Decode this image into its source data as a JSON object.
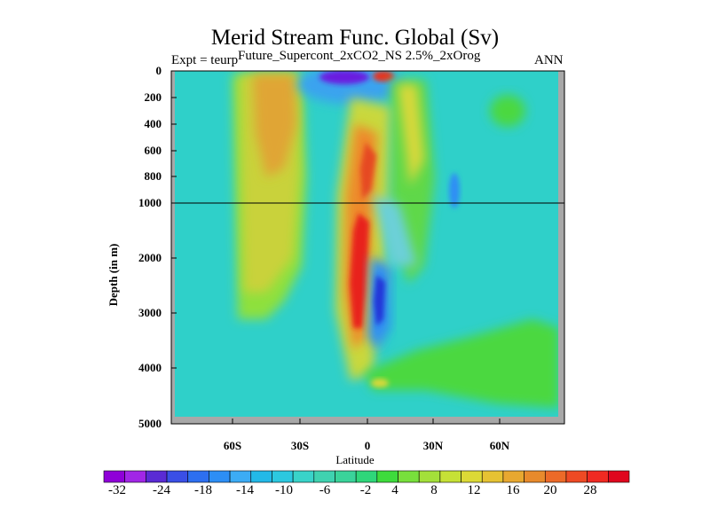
{
  "chart_data": {
    "type": "heatmap",
    "title": "Merid Stream Func. Global (Sv)",
    "subtitle_left": "Expt = teurp",
    "subtitle_center": "Future_Supercont_2xCO2_NS 2.5%_2xOrog",
    "subtitle_right": "ANN",
    "xlabel": "Latitude",
    "ylabel": "Depth (in m)",
    "y_ticks": [
      "0",
      "200",
      "400",
      "600",
      "800",
      "1000",
      "2000",
      "3000",
      "4000",
      "5000"
    ],
    "x_ticks": [
      "60S",
      "30S",
      "0",
      "30N",
      "60N"
    ],
    "colorbar_ticks": [
      "-32",
      "-24",
      "-18",
      "-14",
      "-10",
      "-6",
      "-2",
      "4",
      "8",
      "12",
      "16",
      "20",
      "28"
    ],
    "colorbar_colors": [
      "#8f00d8",
      "#a126e6",
      "#5a2bd4",
      "#3a4fe6",
      "#2d6ff0",
      "#2d8ef5",
      "#3cacf5",
      "#22b9e8",
      "#2cc8e0",
      "#39d3c9",
      "#3fd2b0",
      "#3ad39a",
      "#2fd67a",
      "#3edb3c",
      "#78e03c",
      "#a3e03a",
      "#c6e136",
      "#dcd936",
      "#e6c233",
      "#e8a830",
      "#e88a2c",
      "#ec6a28",
      "#ee4a24",
      "#f02a22",
      "#e0061e"
    ],
    "x_range": [
      -90,
      90
    ],
    "y_range": [
      0,
      5000
    ],
    "horizontal_line_depth": 1000,
    "fields": [
      {
        "name": "southern-cell",
        "color": "#d9c13c",
        "lat_range": [
          -60,
          -30
        ],
        "depth_range": [
          0,
          3100
        ]
      },
      {
        "name": "equatorial-positive-cell",
        "color": "#e8301f",
        "lat_range": [
          -10,
          5
        ],
        "depth_range": [
          500,
          4000
        ]
      },
      {
        "name": "equatorial-negative-cell",
        "color": "#3a4fe6",
        "lat_range": [
          2,
          10
        ],
        "depth_range": [
          2100,
          3400
        ]
      },
      {
        "name": "surface-negative-cell",
        "color": "#6a1ee0",
        "lat_range": [
          -20,
          -5
        ],
        "depth_range": [
          0,
          100
        ]
      },
      {
        "name": "northern-green-deep",
        "color": "#4cd83f",
        "lat_range": [
          30,
          80
        ],
        "depth_range": [
          3000,
          4600
        ]
      }
    ]
  }
}
